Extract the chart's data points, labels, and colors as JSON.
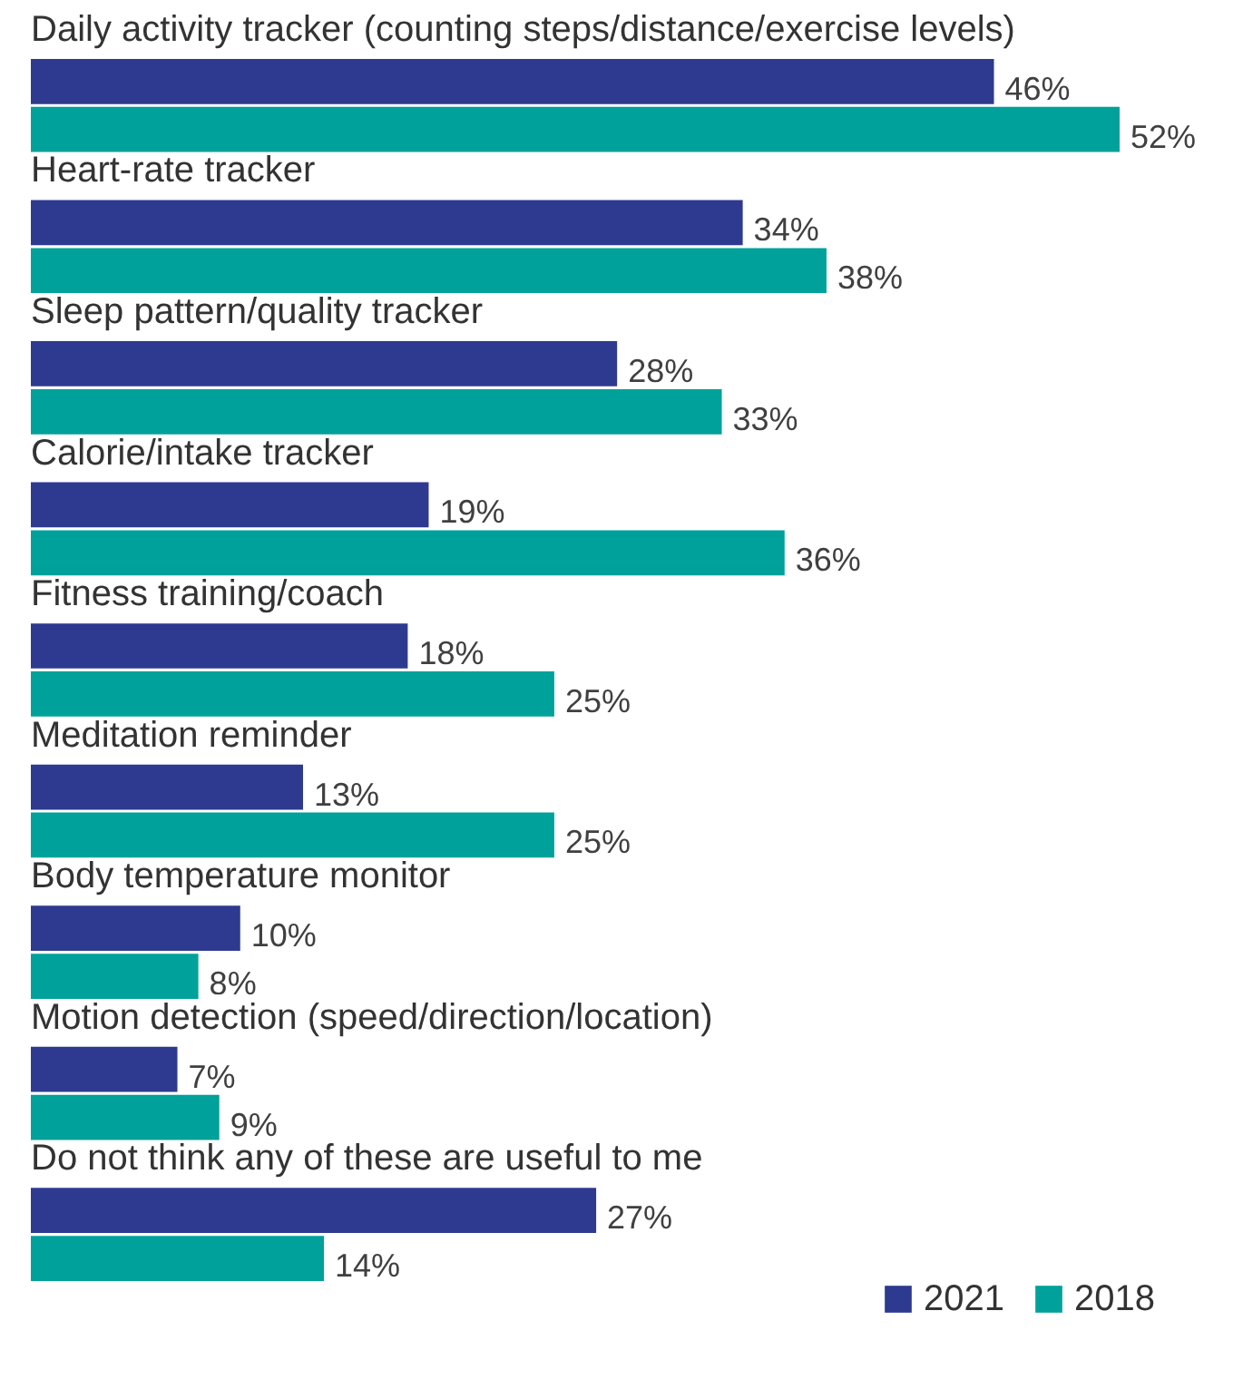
{
  "chart_data": {
    "type": "bar",
    "orientation": "horizontal",
    "categories": [
      "Daily activity tracker (counting steps/distance/exercise levels)",
      "Heart-rate tracker",
      "Sleep pattern/quality tracker",
      "Calorie/intake tracker",
      "Fitness training/coach",
      "Meditation reminder",
      "Body temperature monitor",
      "Motion detection (speed/direction/location)",
      "Do not think any of these are useful to me"
    ],
    "series": [
      {
        "name": "2021",
        "color": "#2e3a8f",
        "values": [
          46,
          34,
          28,
          19,
          18,
          13,
          10,
          7,
          27
        ],
        "value_labels": [
          "46%",
          "34%",
          "28%",
          "19%",
          "18%",
          "13%",
          "10%",
          "7%",
          "27%"
        ]
      },
      {
        "name": "2018",
        "color": "#00a19a",
        "values": [
          52,
          38,
          33,
          36,
          25,
          25,
          8,
          9,
          14
        ],
        "value_labels": [
          "52%",
          "38%",
          "33%",
          "36%",
          "25%",
          "25%",
          "8%",
          "9%",
          "14%"
        ]
      }
    ],
    "legend": "bottom right"
  }
}
